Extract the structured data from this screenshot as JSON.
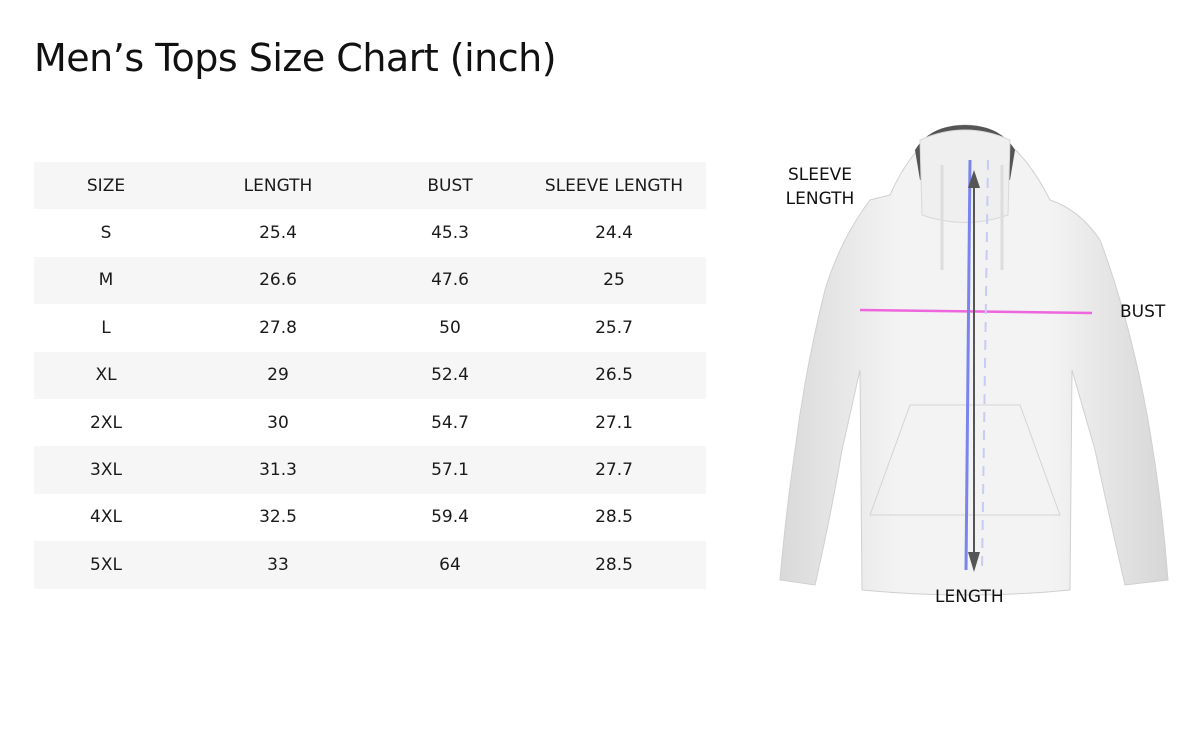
{
  "title": "Men’s Tops Size Chart (inch)",
  "table": {
    "headers": [
      "SIZE",
      "LENGTH",
      "BUST",
      "SLEEVE LENGTH"
    ],
    "rows": [
      [
        "S",
        "25.4",
        "45.3",
        "24.4"
      ],
      [
        "M",
        "26.6",
        "47.6",
        "25"
      ],
      [
        "L",
        "27.8",
        "50",
        "25.7"
      ],
      [
        "XL",
        "29",
        "52.4",
        "26.5"
      ],
      [
        "2XL",
        "30",
        "54.7",
        "27.1"
      ],
      [
        "3XL",
        "31.3",
        "57.1",
        "27.7"
      ],
      [
        "4XL",
        "32.5",
        "59.4",
        "28.5"
      ],
      [
        "5XL",
        "33",
        "64",
        "28.5"
      ]
    ]
  },
  "diagram": {
    "sleeve_label_line1": "SLEEVE",
    "sleeve_label_line2": "LENGTH",
    "bust_label": "BUST",
    "length_label": "LENGTH",
    "colors": {
      "bust_line": "#ee66dd",
      "sleeve_line": "#7a84ee",
      "length_arrow": "#555555",
      "row_shade": "#f6f6f6"
    }
  }
}
